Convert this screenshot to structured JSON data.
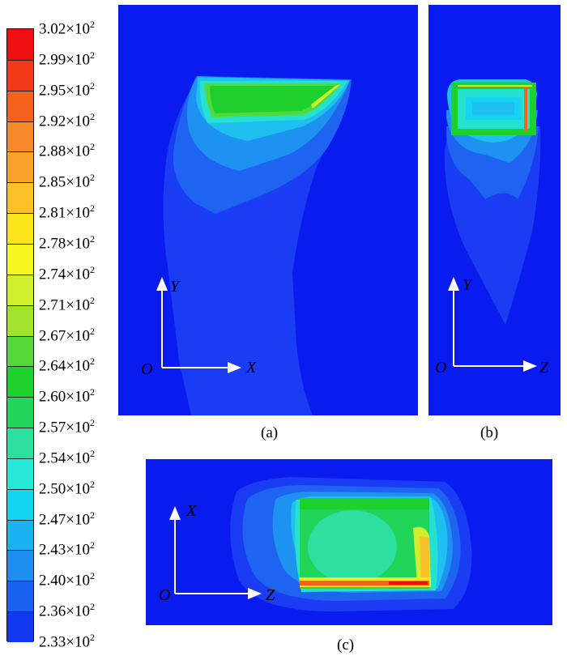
{
  "colorbar": {
    "labels": [
      {
        "mantissa": "3.02",
        "base": "×10",
        "exp": "2"
      },
      {
        "mantissa": "2.99",
        "base": "×10",
        "exp": "2"
      },
      {
        "mantissa": "2.95",
        "base": "×10",
        "exp": "2"
      },
      {
        "mantissa": "2.92",
        "base": "×10",
        "exp": "2"
      },
      {
        "mantissa": "2.88",
        "base": "×10",
        "exp": "2"
      },
      {
        "mantissa": "2.85",
        "base": "×10",
        "exp": "2"
      },
      {
        "mantissa": "2.81",
        "base": "×10",
        "exp": "2"
      },
      {
        "mantissa": "2.78",
        "base": "×10",
        "exp": "2"
      },
      {
        "mantissa": "2.74",
        "base": "×10",
        "exp": "2"
      },
      {
        "mantissa": "2.71",
        "base": "×10",
        "exp": "2"
      },
      {
        "mantissa": "2.67",
        "base": "×10",
        "exp": "2"
      },
      {
        "mantissa": "2.64",
        "base": "×10",
        "exp": "2"
      },
      {
        "mantissa": "2.60",
        "base": "×10",
        "exp": "2"
      },
      {
        "mantissa": "2.57",
        "base": "×10",
        "exp": "2"
      },
      {
        "mantissa": "2.54",
        "base": "×10",
        "exp": "2"
      },
      {
        "mantissa": "2.50",
        "base": "×10",
        "exp": "2"
      },
      {
        "mantissa": "2.47",
        "base": "×10",
        "exp": "2"
      },
      {
        "mantissa": "2.43",
        "base": "×10",
        "exp": "2"
      },
      {
        "mantissa": "2.40",
        "base": "×10",
        "exp": "2"
      },
      {
        "mantissa": "2.36",
        "base": "×10",
        "exp": "2"
      },
      {
        "mantissa": "2.33",
        "base": "×10",
        "exp": "2"
      }
    ],
    "colors": [
      "#ee1010",
      "#f23a18",
      "#f5621e",
      "#f7892a",
      "#f8a22e",
      "#fbc02a",
      "#fde51e",
      "#f7f722",
      "#cfee2e",
      "#a2e22e",
      "#55d83a",
      "#1dd02e",
      "#22d45a",
      "#2ee0a0",
      "#28e6d8",
      "#14d4f2",
      "#1ab2f0",
      "#1e8ef0",
      "#1a62f2",
      "#1238f0"
    ]
  },
  "panels": {
    "a": {
      "caption": "(a)",
      "axis_h": "X",
      "axis_v": "Y",
      "origin": "O"
    },
    "b": {
      "caption": "(b)",
      "axis_h": "Z",
      "axis_v": "Y",
      "origin": "O"
    },
    "c": {
      "caption": "(c)",
      "axis_h": "Z",
      "axis_v": "X",
      "origin": "O"
    }
  }
}
